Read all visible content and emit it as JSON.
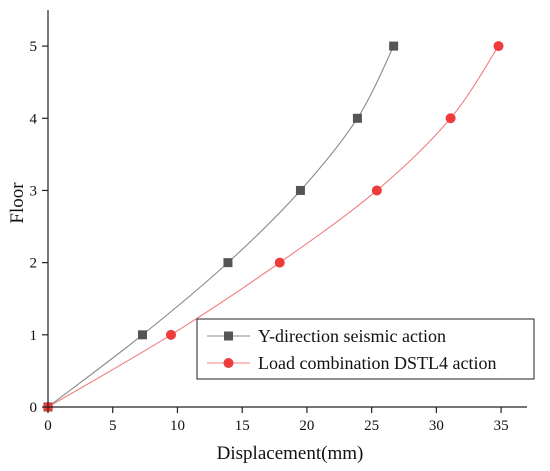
{
  "chart_data": {
    "type": "line",
    "xlabel": "Displacement(mm)",
    "ylabel": "Floor",
    "xlim": [
      0,
      37
    ],
    "ylim": [
      0,
      5.5
    ],
    "x_ticks": [
      "0",
      "5",
      "10",
      "15",
      "20",
      "25",
      "30",
      "35"
    ],
    "y_ticks": [
      "0",
      "1",
      "2",
      "3",
      "4",
      "5"
    ],
    "grid": false,
    "legend_position": "bottom-right",
    "series": [
      {
        "name": "Y-direction seismic action",
        "color": "#555555",
        "line_color": "#8a8a8a",
        "marker": "square",
        "x": [
          0,
          7.3,
          13.9,
          19.5,
          23.9,
          26.7
        ],
        "y": [
          0,
          1,
          2,
          3,
          4,
          5
        ]
      },
      {
        "name": "Load combination DSTL4 action",
        "color": "#ee3b3b",
        "line_color": "#f08080",
        "marker": "circle",
        "x": [
          0,
          9.5,
          17.9,
          25.4,
          31.1,
          34.8
        ],
        "y": [
          0,
          1,
          2,
          3,
          4,
          5
        ]
      }
    ]
  }
}
